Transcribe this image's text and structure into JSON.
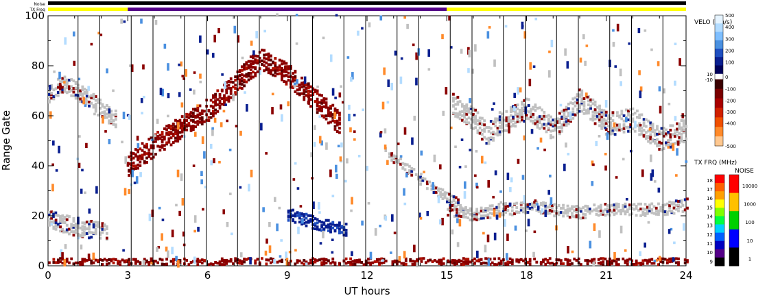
{
  "chart_data": {
    "type": "heatmap",
    "title": "",
    "xlabel": "UT hours",
    "ylabel": "Range Gate",
    "xlim": [
      0,
      24
    ],
    "ylim": [
      0,
      100
    ],
    "x_ticks": [
      0,
      3,
      6,
      9,
      12,
      15,
      18,
      21,
      24
    ],
    "y_ticks": [
      0,
      20,
      40,
      60,
      80,
      100
    ],
    "status_bars": {
      "noise_label": "Noise",
      "txfreq_label": "TX Freq",
      "noise_color": "#000000",
      "txfreq_segments": [
        {
          "start": 0,
          "end": 3,
          "color": "#ffff00"
        },
        {
          "start": 3,
          "end": 15,
          "color": "#550088"
        },
        {
          "start": 15,
          "end": 24,
          "color": "#ffff00"
        }
      ]
    },
    "velocity_scale": {
      "title": "VELO (km/s)",
      "ticks": [
        "500",
        "400",
        "300",
        "200",
        "100",
        "10",
        "0",
        "-10",
        "-100",
        "-200",
        "-300",
        "-400",
        "-500"
      ],
      "colors_positive": [
        "#e6f4ff",
        "#b3dcff",
        "#7fbfff",
        "#4a90e0",
        "#1f4fc0",
        "#0a1f90",
        "#00005a"
      ],
      "colors_negative": [
        "#3a0000",
        "#7a0000",
        "#a80000",
        "#d02000",
        "#f05000",
        "#ff8a2a",
        "#ffc890"
      ]
    },
    "txfreq_scale": {
      "title": "TX FRQ (MHz)",
      "ticks": [
        "18",
        "17",
        "16",
        "15",
        "14",
        "13",
        "12",
        "11",
        "10",
        "9"
      ],
      "colors": [
        "#ff0000",
        "#ff6000",
        "#ffa000",
        "#ffff00",
        "#80ff00",
        "#00ff40",
        "#00d0ff",
        "#0060ff",
        "#0000c0",
        "#550088",
        "#000000"
      ]
    },
    "noise_scale": {
      "title": "NOISE",
      "ticks": [
        "10000",
        "1000",
        "100",
        "10",
        "1"
      ],
      "colors": [
        "#ff0000",
        "#ffc000",
        "#00d000",
        "#0000ff",
        "#000000"
      ]
    },
    "colors": {
      "ground_scatter": "#c0c0c0",
      "negative_velocity": "#8b0000",
      "positive_velocity": "#0a1f90"
    },
    "echo_regions": [
      {
        "name": "ground-scatter-early",
        "t": [
          0,
          0.3,
          0.7,
          1.2,
          1.8,
          2.2
        ],
        "gate": [
          18,
          17,
          16,
          14,
          14,
          13
        ],
        "width": 6,
        "kind": "ground"
      },
      {
        "name": "echo-early-upper",
        "t": [
          0,
          0.5,
          1,
          1.5,
          2,
          2.5
        ],
        "gate": [
          68,
          72,
          70,
          66,
          62,
          58
        ],
        "width": 6,
        "kind": "ground"
      },
      {
        "name": "rising-band",
        "t": [
          3,
          4,
          5,
          6,
          7,
          7.5,
          8,
          9,
          10,
          11
        ],
        "gate": [
          40,
          48,
          55,
          62,
          72,
          78,
          82,
          76,
          66,
          56
        ],
        "width": 8,
        "kind": "negative"
      },
      {
        "name": "midday-blue-band",
        "t": [
          9,
          9.6,
          10.2,
          10.8,
          11.2
        ],
        "gate": [
          20,
          18,
          16,
          15,
          14
        ],
        "width": 4,
        "kind": "positive"
      },
      {
        "name": "descending-trail",
        "t": [
          12.8,
          13.5,
          14.2,
          14.8,
          15.5
        ],
        "gate": [
          44,
          38,
          32,
          28,
          24
        ],
        "width": 3,
        "kind": "ground"
      },
      {
        "name": "afternoon-ground-band",
        "t": [
          15,
          16,
          17,
          18,
          19,
          20,
          21,
          22,
          23,
          24
        ],
        "gate": [
          22,
          20,
          22,
          23,
          22,
          21,
          22,
          22,
          22,
          24
        ],
        "width": 4,
        "kind": "ground"
      },
      {
        "name": "afternoon-upper-band",
        "t": [
          15.2,
          16,
          16.5,
          17,
          18,
          19,
          19.5,
          20,
          21,
          22,
          23,
          24
        ],
        "gate": [
          64,
          58,
          52,
          57,
          62,
          54,
          60,
          66,
          56,
          58,
          50,
          54
        ],
        "width": 8,
        "kind": "ground"
      },
      {
        "name": "low-gate-strip",
        "t": [
          0,
          24
        ],
        "gate": [
          1,
          1
        ],
        "width": 2,
        "kind": "negative"
      }
    ]
  }
}
